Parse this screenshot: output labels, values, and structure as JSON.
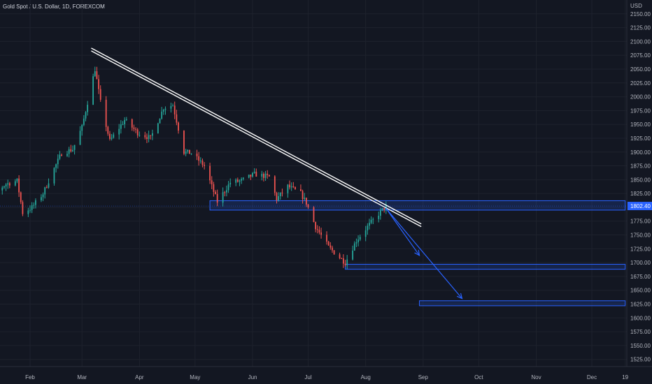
{
  "header": {
    "title": "Gold Spot / U.S. Dollar, 1D, FOREXCOM"
  },
  "chart_data": {
    "type": "candlestick",
    "title": "Gold Spot / U.S. Dollar, 1D, FOREXCOM",
    "currency": "USD",
    "ylim": [
      1512,
      2175
    ],
    "grid": true,
    "y_ticks": [
      1525,
      1550,
      1575,
      1600,
      1625,
      1650,
      1675,
      1700,
      1725,
      1750,
      1775,
      1800,
      1825,
      1850,
      1875,
      1900,
      1925,
      1950,
      1975,
      2000,
      2025,
      2050,
      2075,
      2100,
      2125,
      2150
    ],
    "y_tick_labels": [
      "1525.00",
      "1550.00",
      "1575.00",
      "1600.00",
      "1625.00",
      "1650.00",
      "1675.00",
      "1700.00",
      "1725.00",
      "1750.00",
      "1775.00",
      "1800.00",
      "1825.00",
      "1850.00",
      "1875.00",
      "1900.00",
      "1925.00",
      "1950.00",
      "1975.00",
      "2000.00",
      "2025.00",
      "2050.00",
      "2075.00",
      "2100.00",
      "2125.00",
      "2150.00"
    ],
    "x_ticks": [
      {
        "date": "2022-02-01",
        "label": "Feb"
      },
      {
        "date": "2022-03-01",
        "label": "Mar"
      },
      {
        "date": "2022-04-01",
        "label": "Apr"
      },
      {
        "date": "2022-05-01",
        "label": "May"
      },
      {
        "date": "2022-06-01",
        "label": "Jun"
      },
      {
        "date": "2022-07-01",
        "label": "Jul"
      },
      {
        "date": "2022-08-01",
        "label": "Aug"
      },
      {
        "date": "2022-09-01",
        "label": "Sep"
      },
      {
        "date": "2022-10-01",
        "label": "Oct"
      },
      {
        "date": "2022-11-01",
        "label": "Nov"
      },
      {
        "date": "2022-12-01",
        "label": "Dec"
      },
      {
        "date": "2022-12-19",
        "label": "19"
      }
    ],
    "current_price": 1802.4,
    "current_price_label": "1802.40",
    "close_path": [
      {
        "date": "2022-01-01",
        "close": 1820
      },
      {
        "date": "2022-01-06",
        "close": 1805
      },
      {
        "date": "2022-01-12",
        "close": 1825
      },
      {
        "date": "2022-01-19",
        "close": 1842
      },
      {
        "date": "2022-01-25",
        "close": 1848
      },
      {
        "date": "2022-01-28",
        "close": 1790
      },
      {
        "date": "2022-02-02",
        "close": 1800
      },
      {
        "date": "2022-02-08",
        "close": 1825
      },
      {
        "date": "2022-02-14",
        "close": 1870
      },
      {
        "date": "2022-02-18",
        "close": 1898
      },
      {
        "date": "2022-02-24",
        "close": 1905
      },
      {
        "date": "2022-03-01",
        "close": 1945
      },
      {
        "date": "2022-03-08",
        "close": 2050
      },
      {
        "date": "2022-03-11",
        "close": 1990
      },
      {
        "date": "2022-03-16",
        "close": 1920
      },
      {
        "date": "2022-03-24",
        "close": 1958
      },
      {
        "date": "2022-03-31",
        "close": 1935
      },
      {
        "date": "2022-04-07",
        "close": 1925
      },
      {
        "date": "2022-04-14",
        "close": 1980
      },
      {
        "date": "2022-04-19",
        "close": 1985
      },
      {
        "date": "2022-04-25",
        "close": 1900
      },
      {
        "date": "2022-04-29",
        "close": 1898
      },
      {
        "date": "2022-05-06",
        "close": 1875
      },
      {
        "date": "2022-05-13",
        "close": 1810
      },
      {
        "date": "2022-05-20",
        "close": 1845
      },
      {
        "date": "2022-05-26",
        "close": 1848
      },
      {
        "date": "2022-06-02",
        "close": 1860
      },
      {
        "date": "2022-06-10",
        "close": 1855
      },
      {
        "date": "2022-06-14",
        "close": 1815
      },
      {
        "date": "2022-06-20",
        "close": 1838
      },
      {
        "date": "2022-06-27",
        "close": 1825
      },
      {
        "date": "2022-06-30",
        "close": 1808
      },
      {
        "date": "2022-07-05",
        "close": 1765
      },
      {
        "date": "2022-07-12",
        "close": 1728
      },
      {
        "date": "2022-07-21",
        "close": 1700
      },
      {
        "date": "2022-07-27",
        "close": 1740
      },
      {
        "date": "2022-08-02",
        "close": 1765
      },
      {
        "date": "2022-08-09",
        "close": 1792
      },
      {
        "date": "2022-08-12",
        "close": 1802
      }
    ],
    "drawings": {
      "trendlines": [
        {
          "start": {
            "date": "2022-03-06",
            "price": 2088
          },
          "end": {
            "date": "2022-08-31",
            "price": 1770
          }
        },
        {
          "start": {
            "date": "2022-03-06",
            "price": 2083
          },
          "end": {
            "date": "2022-08-31",
            "price": 1765
          }
        }
      ],
      "zones": [
        {
          "from": "2022-05-09",
          "to": "2022-12-19",
          "low": 1795,
          "high": 1812,
          "color": "#2962ff"
        },
        {
          "from": "2022-07-21",
          "to": "2022-12-19",
          "low": 1688,
          "high": 1697,
          "color": "#2962ff"
        },
        {
          "from": "2022-08-30",
          "to": "2022-12-19",
          "low": 1622,
          "high": 1631,
          "color": "#2962ff"
        }
      ],
      "arrows": [
        {
          "start": {
            "date": "2022-08-12",
            "price": 1798
          },
          "end": {
            "date": "2022-08-30",
            "price": 1713
          },
          "color": "#2962ff"
        },
        {
          "start": {
            "date": "2022-08-12",
            "price": 1798
          },
          "end": {
            "date": "2022-09-22",
            "price": 1635
          },
          "color": "#2962ff"
        }
      ]
    }
  }
}
